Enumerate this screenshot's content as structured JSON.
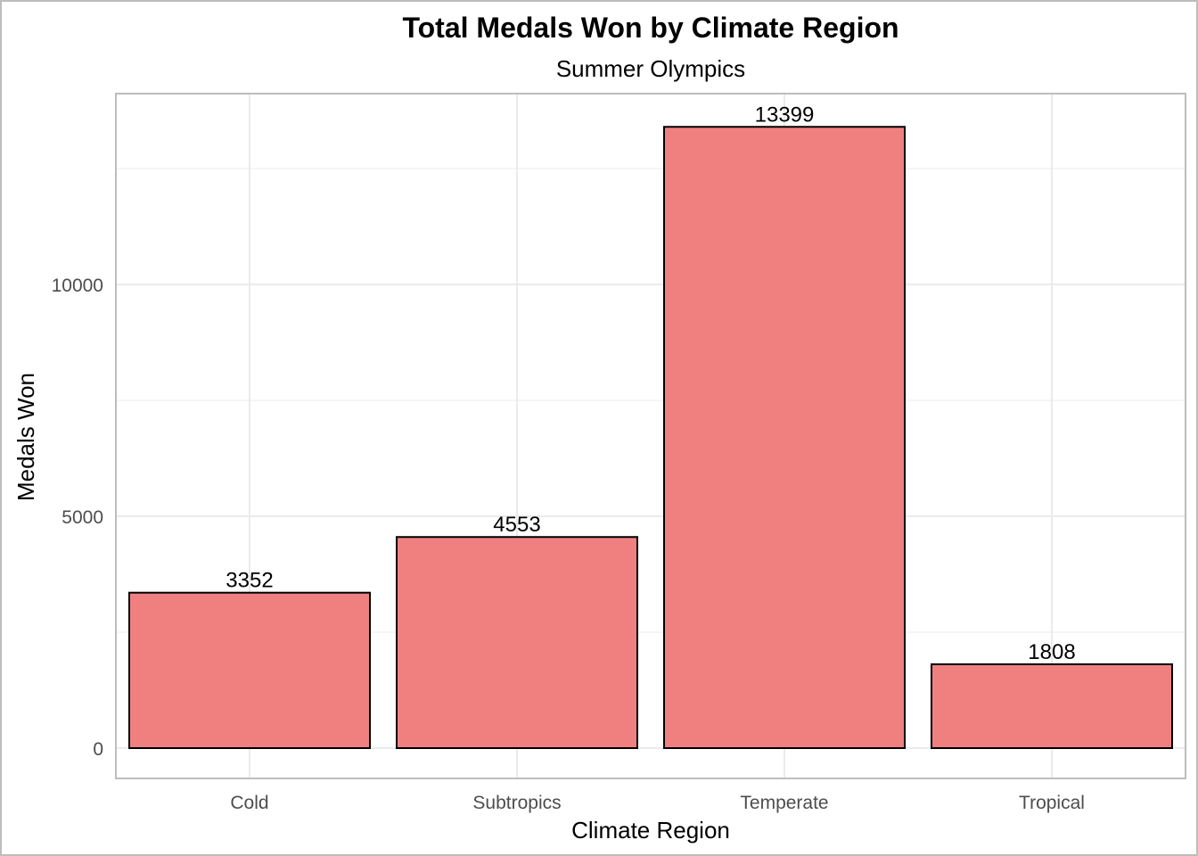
{
  "chart_data": {
    "type": "bar",
    "title": "Total Medals Won by Climate Region",
    "subtitle": "Summer Olympics",
    "xlabel": "Climate Region",
    "ylabel": "Medals Won",
    "categories": [
      "Cold",
      "Subtropics",
      "Temperate",
      "Tropical"
    ],
    "values": [
      3352,
      4553,
      13399,
      1808
    ],
    "data_labels": [
      "3352",
      "4553",
      "13399",
      "1808"
    ],
    "ylim": [
      -650,
      14050
    ],
    "y_ticks": [
      0,
      5000,
      10000
    ],
    "y_tick_labels": [
      "0",
      "5000",
      "10000"
    ],
    "y_minor_gridlines": [
      2500,
      7500,
      12500
    ],
    "grid": true,
    "legend": "none",
    "colors": {
      "bar_fill": "#F08080",
      "bar_stroke": "#000000",
      "grid": "#ebebeb",
      "panel_border": "#bdbdbd"
    }
  }
}
